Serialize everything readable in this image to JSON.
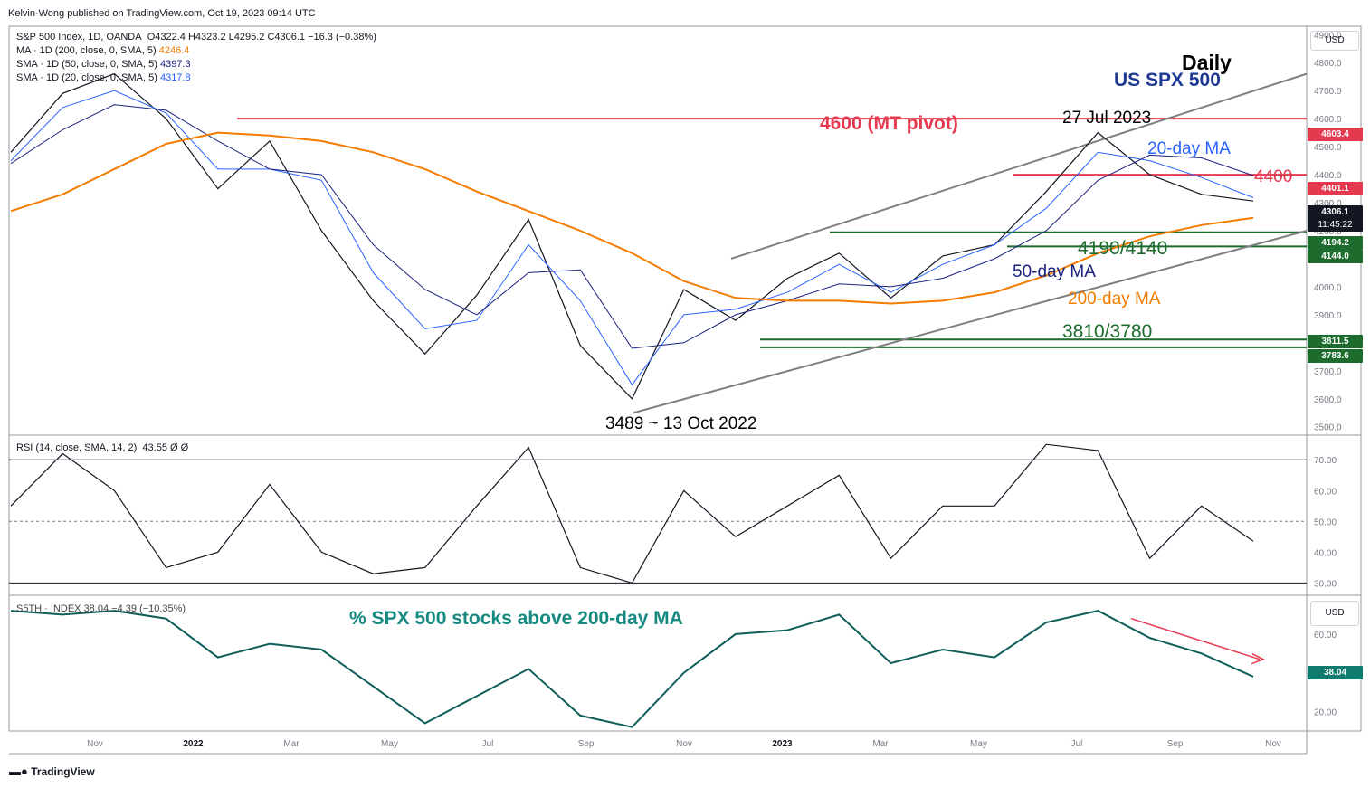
{
  "header": {
    "published": "Kelvin-Wong published on TradingView.com, Oct 19, 2023 09:14 UTC",
    "footer_brand": "TradingView"
  },
  "main_pane": {
    "instrument": "S&P 500 Index, 1D, OANDA",
    "ohlc": "O4322.4  H4323.2  L4295.2  C4306.1  −16.3 (−0.38%)",
    "ma_lines": [
      {
        "label": "MA · 1D (200, close, 0, SMA, 5)",
        "value": "4246.4",
        "color": "#f57c00"
      },
      {
        "label": "SMA · 1D (50, close, 0, SMA, 5)",
        "value": "4397.3",
        "color": "#1a237e"
      },
      {
        "label": "SMA · 1D (20, close, 0, SMA, 5)",
        "value": "4317.8",
        "color": "#2962ff"
      }
    ],
    "currency": "USD",
    "y_ticks": [
      "4900.0",
      "4800.0",
      "4700.0",
      "4600.0",
      "4500.0",
      "4400.0",
      "4300.0",
      "4200.0",
      "4100.0",
      "4000.0",
      "3900.0",
      "3800.0",
      "3700.0",
      "3600.0",
      "3500.0"
    ],
    "price_tags": [
      {
        "text": "4603.4",
        "color": "#e53950"
      },
      {
        "text": "4401.1",
        "color": "#e53950"
      },
      {
        "text": "4306.1",
        "color": "#131722"
      },
      {
        "text": "11:45:22",
        "color": "#131722"
      },
      {
        "text": "4194.2",
        "color": "#1e6b2e"
      },
      {
        "text": "4144.0",
        "color": "#1e6b2e"
      },
      {
        "text": "3811.5",
        "color": "#1e6b2e"
      },
      {
        "text": "3783.6",
        "color": "#1e6b2e"
      }
    ],
    "annotations": {
      "title_daily": "Daily",
      "title_name": "US SPX 500",
      "pivot": "4600 (MT pivot)",
      "peak_date": "27 Jul 2023",
      "ma20": "20-day MA",
      "level_4400": "4400",
      "support_upper": "4190/4140",
      "ma50": "50-day MA",
      "ma200": "200-day MA",
      "support_lower": "3810/3780",
      "low_label": "3489 ~ 13 Oct 2022"
    }
  },
  "rsi_pane": {
    "label": "RSI (14, close, SMA, 14, 2)",
    "value": "43.55  Ø  Ø",
    "y_ticks": [
      "70.00",
      "60.00",
      "50.00",
      "40.00",
      "30.00"
    ]
  },
  "breadth_pane": {
    "label": "S5TH · INDEX  38.04  −4.39 (−10.35%)",
    "title": "% SPX 500 stocks above 200-day MA",
    "currency": "USD",
    "y_ticks": [
      "60.00",
      "40.00",
      "20.00"
    ],
    "last_value": "38.04"
  },
  "x_axis": {
    "labels": [
      "Nov",
      "2022",
      "Mar",
      "May",
      "Jul",
      "Sep",
      "Nov",
      "2023",
      "Mar",
      "May",
      "Jul",
      "Sep",
      "Nov"
    ]
  },
  "chart_data": [
    {
      "type": "line",
      "title": "S&P 500 Index, 1D (close, approx.)",
      "x": [
        "2021-10",
        "2021-11",
        "2021-12",
        "2022-01",
        "2022-02",
        "2022-03",
        "2022-04",
        "2022-05",
        "2022-06",
        "2022-07",
        "2022-08",
        "2022-09",
        "2022-10",
        "2022-11",
        "2022-12",
        "2023-01",
        "2023-02",
        "2023-03",
        "2023-04",
        "2023-05",
        "2023-06",
        "2023-07",
        "2023-08",
        "2023-09",
        "2023-10"
      ],
      "series": [
        {
          "name": "SPX 500",
          "values": [
            4480,
            4690,
            4760,
            4600,
            4350,
            4520,
            4200,
            3950,
            3760,
            3970,
            4240,
            3790,
            3600,
            3990,
            3880,
            4030,
            4120,
            3960,
            4110,
            4150,
            4340,
            4550,
            4400,
            4330,
            4306
          ]
        },
        {
          "name": "SMA 20",
          "values": [
            4450,
            4640,
            4700,
            4620,
            4420,
            4420,
            4380,
            4050,
            3850,
            3880,
            4150,
            3950,
            3650,
            3900,
            3920,
            3980,
            4080,
            3980,
            4080,
            4150,
            4280,
            4480,
            4450,
            4390,
            4318
          ]
        },
        {
          "name": "SMA 50",
          "values": [
            4440,
            4560,
            4650,
            4630,
            4520,
            4420,
            4400,
            4150,
            3990,
            3900,
            4050,
            4060,
            3780,
            3800,
            3900,
            3950,
            4010,
            4000,
            4030,
            4100,
            4200,
            4380,
            4470,
            4460,
            4397
          ]
        },
        {
          "name": "MA 200",
          "values": [
            4270,
            4330,
            4420,
            4510,
            4550,
            4540,
            4520,
            4480,
            4420,
            4340,
            4270,
            4200,
            4120,
            4020,
            3960,
            3950,
            3950,
            3940,
            3950,
            3980,
            4040,
            4120,
            4180,
            4220,
            4246
          ]
        }
      ],
      "ylim": [
        3470,
        4930
      ],
      "levels": {
        "pivot": 4600,
        "resistance": 4400,
        "support_upper": [
          4194.2,
          4144.0
        ],
        "support_lower": [
          3811.5,
          3783.6
        ],
        "low": 3489
      }
    },
    {
      "type": "line",
      "title": "RSI (14)",
      "x": [
        "2021-10",
        "2021-11",
        "2021-12",
        "2022-01",
        "2022-02",
        "2022-03",
        "2022-04",
        "2022-05",
        "2022-06",
        "2022-07",
        "2022-08",
        "2022-09",
        "2022-10",
        "2022-11",
        "2022-12",
        "2023-01",
        "2023-02",
        "2023-03",
        "2023-04",
        "2023-05",
        "2023-06",
        "2023-07",
        "2023-08",
        "2023-09",
        "2023-10"
      ],
      "values": [
        55,
        72,
        60,
        35,
        40,
        62,
        40,
        33,
        35,
        55,
        74,
        35,
        30,
        60,
        45,
        55,
        65,
        38,
        55,
        55,
        75,
        73,
        38,
        55,
        43.55
      ],
      "ylim": [
        26,
        78
      ],
      "levels": [
        70,
        50,
        30
      ]
    },
    {
      "type": "line",
      "title": "% SPX 500 stocks above 200-day MA",
      "x": [
        "2021-10",
        "2021-11",
        "2021-12",
        "2022-01",
        "2022-02",
        "2022-03",
        "2022-04",
        "2022-05",
        "2022-06",
        "2022-07",
        "2022-08",
        "2022-09",
        "2022-10",
        "2022-11",
        "2022-12",
        "2023-01",
        "2023-02",
        "2023-03",
        "2023-04",
        "2023-05",
        "2023-06",
        "2023-07",
        "2023-08",
        "2023-09",
        "2023-10"
      ],
      "values": [
        72,
        70,
        72,
        68,
        48,
        55,
        52,
        33,
        14,
        28,
        42,
        18,
        12,
        40,
        60,
        62,
        70,
        45,
        52,
        48,
        66,
        72,
        58,
        50,
        38.04
      ],
      "ylim": [
        10,
        80
      ]
    }
  ]
}
